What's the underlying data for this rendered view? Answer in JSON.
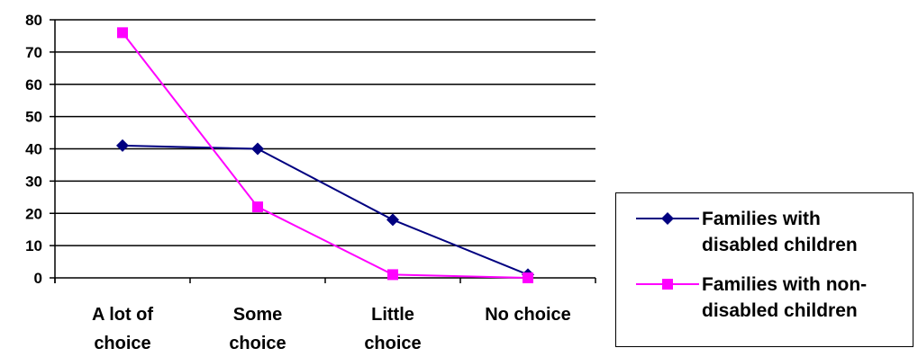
{
  "chart_data": {
    "type": "line",
    "categories": [
      [
        "A lot of",
        "choice"
      ],
      [
        "Some",
        "choice"
      ],
      [
        "Little",
        "choice"
      ],
      [
        "No choice"
      ]
    ],
    "series": [
      {
        "name": "Families with disabled children",
        "name_lines": [
          "Families with",
          "disabled children"
        ],
        "values": [
          41,
          40,
          18,
          1
        ],
        "color": "#000080",
        "marker": "diamond"
      },
      {
        "name": "Families with non-disabled children",
        "name_lines": [
          "Families with non-",
          "disabled children"
        ],
        "values": [
          76,
          22,
          1,
          0
        ],
        "color": "#ff00ff",
        "marker": "square"
      }
    ],
    "ylim": [
      0,
      80
    ],
    "yticks": [
      0,
      10,
      20,
      30,
      40,
      50,
      60,
      70,
      80
    ],
    "title": "",
    "xlabel": "",
    "ylabel": "",
    "grid": true,
    "legend_position": "right"
  }
}
